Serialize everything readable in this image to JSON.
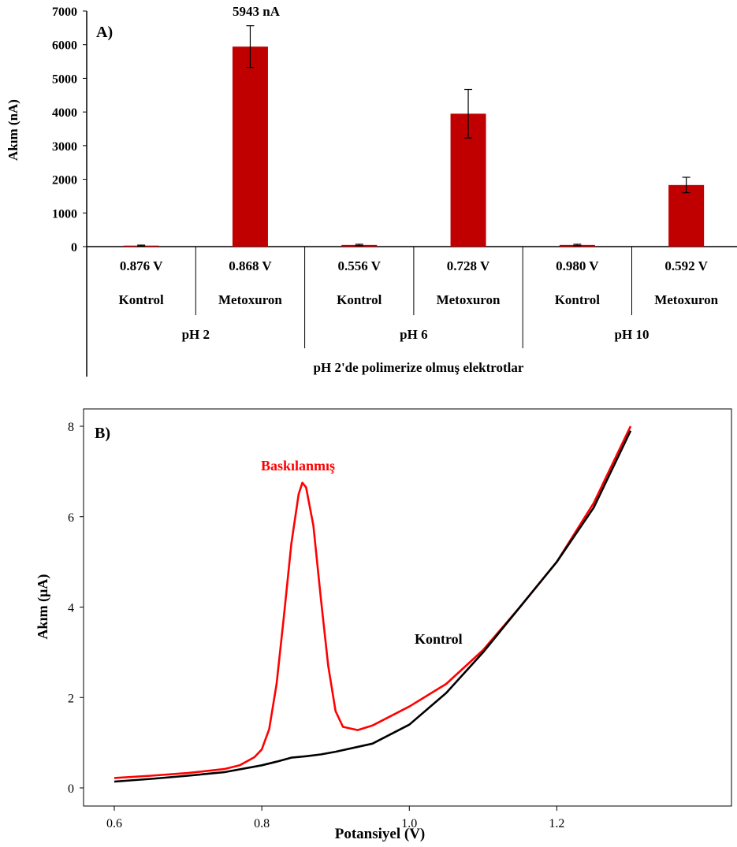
{
  "chart_data": [
    {
      "type": "bar",
      "panel_label": "A)",
      "ylabel": "Akım (nA)",
      "ylim": [
        0,
        7000
      ],
      "y_ticks": [
        "0",
        "1000",
        "2000",
        "3000",
        "4000",
        "5000",
        "6000",
        "7000"
      ],
      "categories": [
        {
          "potential": "0.876 V",
          "name": "Kontrol"
        },
        {
          "potential": "0.868 V",
          "name": "Metoxuron"
        },
        {
          "potential": "0.556 V",
          "name": "Kontrol"
        },
        {
          "potential": "0.728 V",
          "name": "Metoxuron"
        },
        {
          "potential": "0.980 V",
          "name": "Kontrol"
        },
        {
          "potential": "0.592 V",
          "name": "Metoxuron"
        }
      ],
      "groups": [
        "pH 2",
        "pH 6",
        "pH 10"
      ],
      "group_title": "pH 2'de polimerize olmuş elektrotlar",
      "values": [
        30,
        5943,
        50,
        3950,
        50,
        1830
      ],
      "errors": [
        15,
        620,
        20,
        720,
        20,
        230
      ],
      "bar_color": "#c00000",
      "annotation": "5943 nA"
    },
    {
      "type": "line",
      "panel_label": "B)",
      "xlabel": "Potansiyel (V)",
      "ylabel": "Akım (µA)",
      "xlim": [
        0.6,
        1.3
      ],
      "ylim": [
        0,
        8
      ],
      "x_ticks": [
        "0.6",
        "0.8",
        "1.0",
        "1.2"
      ],
      "y_ticks": [
        "0",
        "2",
        "4",
        "6",
        "8"
      ],
      "series": [
        {
          "name": "Baskılanmış",
          "color": "#ff0000",
          "points": [
            [
              0.6,
              0.22
            ],
            [
              0.65,
              0.27
            ],
            [
              0.7,
              0.33
            ],
            [
              0.75,
              0.42
            ],
            [
              0.77,
              0.5
            ],
            [
              0.79,
              0.68
            ],
            [
              0.8,
              0.85
            ],
            [
              0.81,
              1.3
            ],
            [
              0.82,
              2.3
            ],
            [
              0.83,
              3.8
            ],
            [
              0.84,
              5.4
            ],
            [
              0.85,
              6.5
            ],
            [
              0.855,
              6.75
            ],
            [
              0.86,
              6.65
            ],
            [
              0.87,
              5.8
            ],
            [
              0.88,
              4.2
            ],
            [
              0.89,
              2.7
            ],
            [
              0.9,
              1.7
            ],
            [
              0.91,
              1.35
            ],
            [
              0.93,
              1.28
            ],
            [
              0.95,
              1.38
            ],
            [
              1.0,
              1.8
            ],
            [
              1.05,
              2.3
            ],
            [
              1.1,
              3.05
            ],
            [
              1.15,
              4.0
            ],
            [
              1.2,
              5.0
            ],
            [
              1.25,
              6.3
            ],
            [
              1.3,
              8.0
            ]
          ]
        },
        {
          "name": "Kontrol",
          "color": "#000000",
          "points": [
            [
              0.6,
              0.14
            ],
            [
              0.65,
              0.2
            ],
            [
              0.7,
              0.27
            ],
            [
              0.75,
              0.35
            ],
            [
              0.8,
              0.5
            ],
            [
              0.82,
              0.58
            ],
            [
              0.84,
              0.67
            ],
            [
              0.86,
              0.7
            ],
            [
              0.88,
              0.74
            ],
            [
              0.9,
              0.8
            ],
            [
              0.95,
              0.98
            ],
            [
              1.0,
              1.4
            ],
            [
              1.05,
              2.1
            ],
            [
              1.1,
              3.0
            ],
            [
              1.15,
              4.0
            ],
            [
              1.2,
              5.0
            ],
            [
              1.25,
              6.2
            ],
            [
              1.3,
              7.9
            ]
          ]
        }
      ]
    }
  ]
}
